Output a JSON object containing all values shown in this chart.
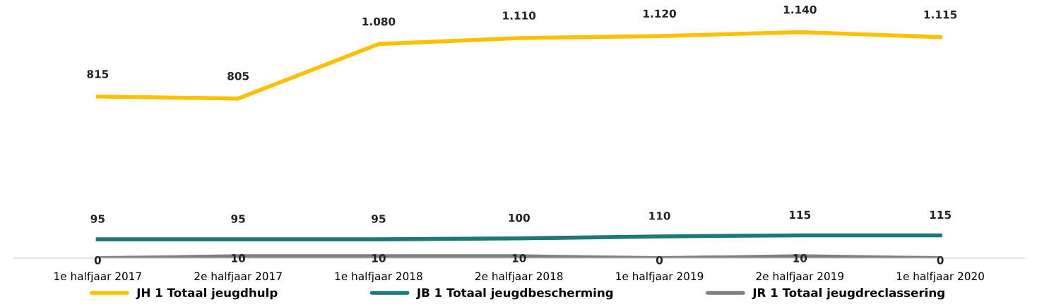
{
  "chart_data": {
    "type": "line",
    "categories": [
      "1e halfjaar 2017",
      "2e halfjaar 2017",
      "1e halfjaar 2018",
      "2e halfjaar 2018",
      "1e halfjaar 2019",
      "2e halfjaar 2019",
      "1e halfjaar 2020"
    ],
    "series": [
      {
        "name": "JH 1 Totaal jeugdhulp",
        "color": "#ffc000",
        "values": [
          815,
          805,
          1080,
          1110,
          1120,
          1140,
          1115
        ],
        "value_labels": [
          "815",
          "805",
          "1.080",
          "1.110",
          "1.120",
          "1.140",
          "1.115"
        ]
      },
      {
        "name": "JB 1 Totaal jeugdbescherming",
        "color": "#1f7878",
        "values": [
          95,
          95,
          95,
          100,
          110,
          115,
          115
        ],
        "value_labels": [
          "95",
          "95",
          "95",
          "100",
          "110",
          "115",
          "115"
        ]
      },
      {
        "name": "JR 1 Totaal jeugdreclassering",
        "color": "#808080",
        "values": [
          0,
          10,
          10,
          10,
          0,
          10,
          0
        ],
        "value_labels": [
          "0",
          "10",
          "10",
          "10",
          "0",
          "10",
          "0"
        ]
      }
    ],
    "legend": "bottom",
    "grid": false,
    "marker": "none",
    "line_style": "solid"
  }
}
